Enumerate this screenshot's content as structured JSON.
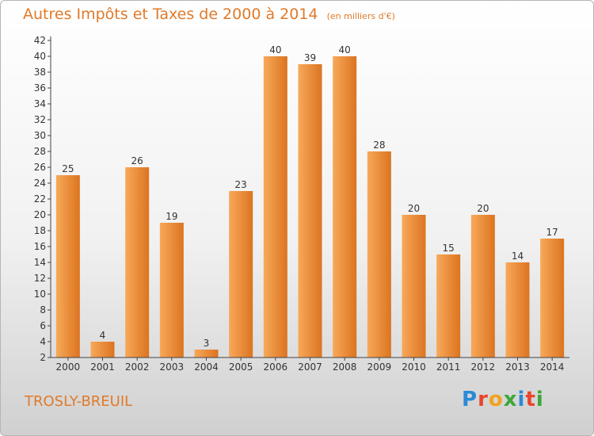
{
  "chart_data": {
    "type": "bar",
    "title": "Autres Impôts et Taxes de 2000 à 2014",
    "unit_label": "(en milliers d'€)",
    "categories": [
      "2000",
      "2001",
      "2002",
      "2003",
      "2004",
      "2005",
      "2006",
      "2007",
      "2008",
      "2009",
      "2010",
      "2011",
      "2012",
      "2013",
      "2014"
    ],
    "values": [
      25,
      4,
      26,
      19,
      3,
      23,
      40,
      39,
      40,
      28,
      20,
      15,
      20,
      14,
      17
    ],
    "xlabel": "",
    "ylabel": "",
    "ylim": [
      2,
      42
    ],
    "yticks": [
      2,
      4,
      6,
      8,
      10,
      12,
      14,
      16,
      18,
      20,
      22,
      24,
      26,
      28,
      30,
      32,
      34,
      36,
      38,
      40,
      42
    ],
    "grid": false,
    "legend": "none",
    "bar_color": "#f0923a"
  },
  "location": "TROSLY-BREUIL",
  "logo_text": "Proxiti",
  "colors": {
    "title": "#e07a2a",
    "bar_light": "#f7a95a",
    "bar_dark": "#dc7420",
    "logo": [
      "#2a8ad6",
      "#e8452c",
      "#f2a21a",
      "#3aa83a",
      "#2a8ad6",
      "#e8452c",
      "#3aa83a"
    ]
  }
}
